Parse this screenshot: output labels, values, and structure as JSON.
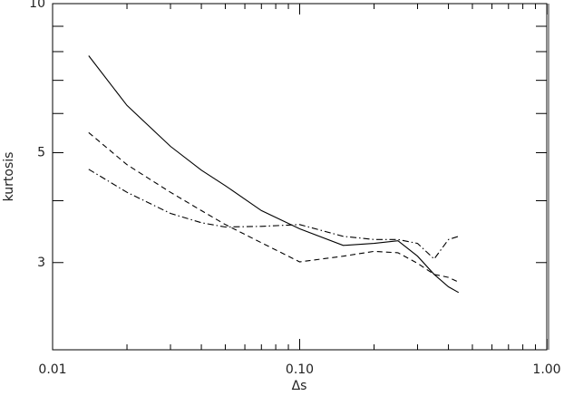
{
  "chart_data": {
    "type": "line",
    "x_label": "Δs",
    "y_label": "kurtosis",
    "x_log": true,
    "y_log": true,
    "xlim": [
      0.01,
      1
    ],
    "ylim": [
      2,
      10
    ],
    "xticks": [
      {
        "value": 0.01,
        "label": "0.01"
      },
      {
        "value": 0.1,
        "label": "0.10"
      },
      {
        "value": 1,
        "label": "1.00"
      }
    ],
    "xminorticks": [
      0.02,
      0.03,
      0.04,
      0.05,
      0.06,
      0.07,
      0.08,
      0.09,
      0.2,
      0.3,
      0.4,
      0.5,
      0.6,
      0.7,
      0.8,
      0.9
    ],
    "yticks": [
      3,
      5,
      10
    ],
    "yminorticks": [
      4,
      6,
      7,
      8,
      9
    ],
    "x": [
      0.014,
      0.02,
      0.03,
      0.04,
      0.05,
      0.07,
      0.1,
      0.15,
      0.2,
      0.25,
      0.3,
      0.35,
      0.4,
      0.44
    ],
    "series": [
      {
        "color": "#000000",
        "dash": "solid",
        "values": [
          7.85,
          6.23,
          5.15,
          4.61,
          4.29,
          3.82,
          3.51,
          3.25,
          3.28,
          3.32,
          3.09,
          2.84,
          2.68,
          2.61
        ]
      },
      {
        "color": "#000000",
        "dash": "dashed",
        "values": [
          5.49,
          4.73,
          4.16,
          3.82,
          3.58,
          3.29,
          3.01,
          3.09,
          3.16,
          3.14,
          2.99,
          2.84,
          2.8,
          2.74
        ]
      },
      {
        "color": "#000000",
        "dash": "dashdot",
        "values": [
          4.63,
          4.16,
          3.77,
          3.61,
          3.54,
          3.55,
          3.58,
          3.39,
          3.34,
          3.34,
          3.28,
          3.05,
          3.34,
          3.39
        ]
      }
    ]
  }
}
